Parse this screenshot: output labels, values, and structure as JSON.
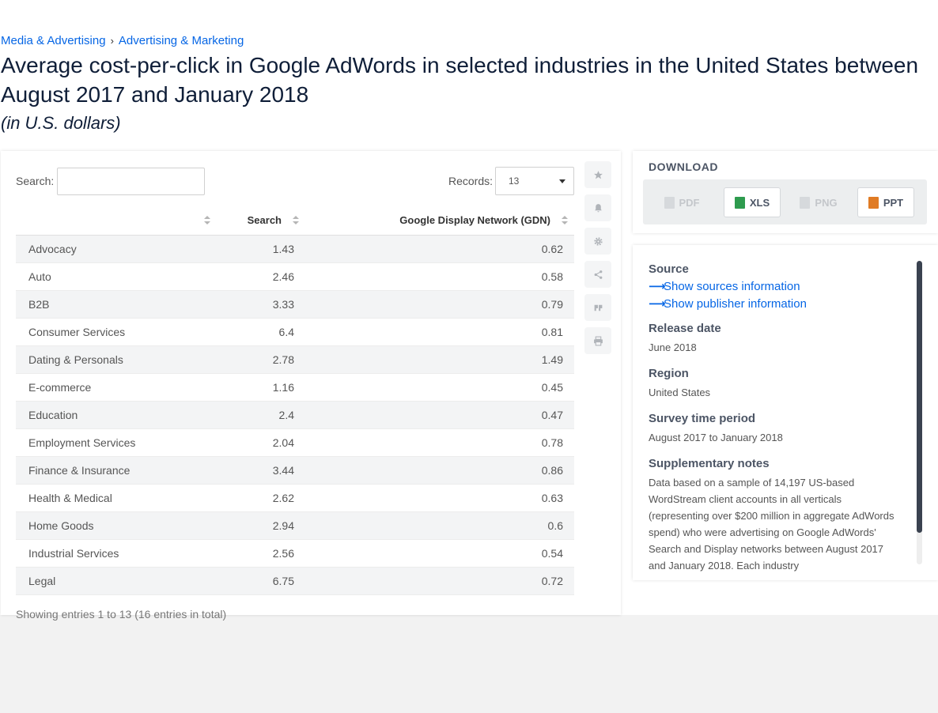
{
  "breadcrumb": [
    "Media & Advertising",
    "Advertising & Marketing"
  ],
  "title": "Average cost-per-click in Google AdWords in selected industries in the United States between August 2017 and January 2018",
  "subtitle": "(in U.S. dollars)",
  "controls": {
    "search_label": "Search:",
    "search_value": "",
    "records_label": "Records:",
    "records_value": "13"
  },
  "table": {
    "columns": [
      "",
      "Search",
      "Google Display Network (GDN)"
    ],
    "rows": [
      {
        "category": "Advocacy",
        "search": "1.43",
        "gdn": "0.62"
      },
      {
        "category": "Auto",
        "search": "2.46",
        "gdn": "0.58"
      },
      {
        "category": "B2B",
        "search": "3.33",
        "gdn": "0.79"
      },
      {
        "category": "Consumer Services",
        "search": "6.4",
        "gdn": "0.81"
      },
      {
        "category": "Dating & Personals",
        "search": "2.78",
        "gdn": "1.49"
      },
      {
        "category": "E-commerce",
        "search": "1.16",
        "gdn": "0.45"
      },
      {
        "category": "Education",
        "search": "2.4",
        "gdn": "0.47"
      },
      {
        "category": "Employment Services",
        "search": "2.04",
        "gdn": "0.78"
      },
      {
        "category": "Finance & Insurance",
        "search": "3.44",
        "gdn": "0.86"
      },
      {
        "category": "Health & Medical",
        "search": "2.62",
        "gdn": "0.63"
      },
      {
        "category": "Home Goods",
        "search": "2.94",
        "gdn": "0.6"
      },
      {
        "category": "Industrial Services",
        "search": "2.56",
        "gdn": "0.54"
      },
      {
        "category": "Legal",
        "search": "6.75",
        "gdn": "0.72"
      }
    ],
    "footer": "Showing entries 1 to 13 (16 entries in total)"
  },
  "tools": [
    "star-icon",
    "bell-icon",
    "gear-icon",
    "share-icon",
    "quote-icon",
    "print-icon"
  ],
  "download": {
    "title": "DOWNLOAD",
    "buttons": [
      {
        "label": "PDF",
        "enabled": false,
        "color": "#c4c7cb"
      },
      {
        "label": "XLS",
        "enabled": true,
        "color": "#2e9b4e"
      },
      {
        "label": "PNG",
        "enabled": false,
        "color": "#c4c7cb"
      },
      {
        "label": "PPT",
        "enabled": true,
        "color": "#e07b24"
      }
    ]
  },
  "info": {
    "source_heading": "Source",
    "show_sources": "Show sources information",
    "show_publisher": "Show publisher information",
    "release_heading": "Release date",
    "release_value": "June 2018",
    "region_heading": "Region",
    "region_value": "United States",
    "survey_heading": "Survey time period",
    "survey_value": "August 2017 to January 2018",
    "notes_heading": "Supplementary notes",
    "notes_value": "Data based on a sample of 14,197 US-based WordStream client accounts in all verticals (representing over $200 million in aggregate AdWords spend) who were advertising on Google AdWords' Search and Display networks between August 2017 and January 2018. Each industry"
  },
  "colors": {
    "link": "#0666e5",
    "title": "#0f1e38"
  }
}
